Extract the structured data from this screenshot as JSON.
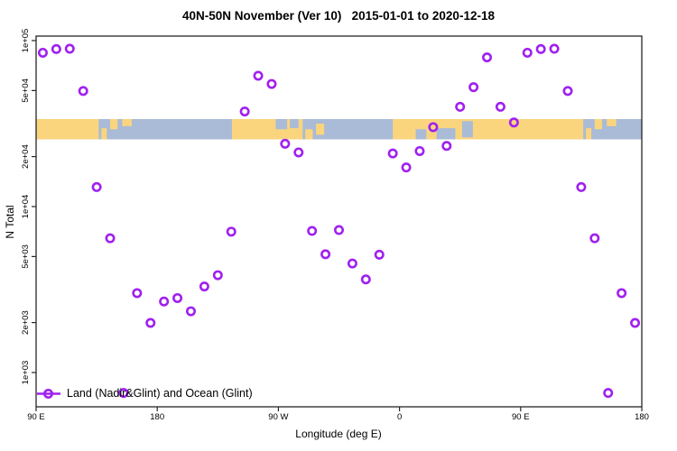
{
  "title": "40N-50N November (Ver 10)   2015-01-01 to 2020-12-18",
  "chart_data": {
    "type": "scatter",
    "title": "40N-50N November (Ver 10)   2015-01-01 to 2020-12-18",
    "xlabel": "Longitude (deg E)",
    "ylabel": "N Total",
    "y_scale": "log10",
    "ylim": [
      620,
      106000
    ],
    "x_span_deg": [
      90,
      540
    ],
    "grid": "off",
    "x_ticks": [
      {
        "deg": 90,
        "label": "90 E"
      },
      {
        "deg": 180,
        "label": "180"
      },
      {
        "deg": 270,
        "label": "90 W"
      },
      {
        "deg": 360,
        "label": "0"
      },
      {
        "deg": 450,
        "label": "90 E"
      },
      {
        "deg": 540,
        "label": "180"
      }
    ],
    "y_ticks": [
      {
        "value": 100000,
        "label": "1e+05"
      },
      {
        "value": 50000,
        "label": "5e+04"
      },
      {
        "value": 20000,
        "label": "2e+04"
      },
      {
        "value": 10000,
        "label": "1e+04"
      },
      {
        "value": 5000,
        "label": "5e+03"
      },
      {
        "value": 2000,
        "label": "2e+03"
      },
      {
        "value": 1000,
        "label": "1e+03"
      }
    ],
    "legend": {
      "label": "Land (Nadir&Glint) and Ocean (Glint)",
      "marker": "open-circle-on-line",
      "position": "bottom-left"
    },
    "marker": {
      "shape": "open-circle",
      "color": "#A020F0",
      "radius_px": 4.2,
      "stroke_px": 2.6
    },
    "points": [
      {
        "lon": "95E",
        "deg": 95,
        "value": 84500
      },
      {
        "lon": "105E",
        "deg": 105,
        "value": 88900
      },
      {
        "lon": "115E",
        "deg": 115,
        "value": 89300
      },
      {
        "lon": "125E",
        "deg": 125,
        "value": 49700
      },
      {
        "lon": "135E",
        "deg": 135,
        "value": 13100
      },
      {
        "lon": "145E",
        "deg": 145,
        "value": 6440
      },
      {
        "lon": "155E",
        "deg": 155,
        "value": 753
      },
      {
        "lon": "165E",
        "deg": 165,
        "value": 3010
      },
      {
        "lon": "175E",
        "deg": 175,
        "value": 1990
      },
      {
        "lon": "175W",
        "deg": 185,
        "value": 2680
      },
      {
        "lon": "165W",
        "deg": 195,
        "value": 2810
      },
      {
        "lon": "155W",
        "deg": 205,
        "value": 2340
      },
      {
        "lon": "145W",
        "deg": 215,
        "value": 3300
      },
      {
        "lon": "135W",
        "deg": 225,
        "value": 3860
      },
      {
        "lon": "125W",
        "deg": 235,
        "value": 7060
      },
      {
        "lon": "115W",
        "deg": 245,
        "value": 37400
      },
      {
        "lon": "105W",
        "deg": 255,
        "value": 61400
      },
      {
        "lon": "95W",
        "deg": 265,
        "value": 54800
      },
      {
        "lon": "85W",
        "deg": 275,
        "value": 23900
      },
      {
        "lon": "75W",
        "deg": 285,
        "value": 21200
      },
      {
        "lon": "65W",
        "deg": 295,
        "value": 7130
      },
      {
        "lon": "55W",
        "deg": 305,
        "value": 5160
      },
      {
        "lon": "45W",
        "deg": 315,
        "value": 7220
      },
      {
        "lon": "35W",
        "deg": 325,
        "value": 4540
      },
      {
        "lon": "25W",
        "deg": 335,
        "value": 3640
      },
      {
        "lon": "15W",
        "deg": 345,
        "value": 5130
      },
      {
        "lon": "5W",
        "deg": 355,
        "value": 20900
      },
      {
        "lon": "5E",
        "deg": 365,
        "value": 17200
      },
      {
        "lon": "15E",
        "deg": 375,
        "value": 21600
      },
      {
        "lon": "25E",
        "deg": 385,
        "value": 30100
      },
      {
        "lon": "35E",
        "deg": 395,
        "value": 23200
      },
      {
        "lon": "45E",
        "deg": 405,
        "value": 39900
      },
      {
        "lon": "55E",
        "deg": 415,
        "value": 52400
      },
      {
        "lon": "65E",
        "deg": 425,
        "value": 79200
      },
      {
        "lon": "75E",
        "deg": 435,
        "value": 39900
      },
      {
        "lon": "85E",
        "deg": 445,
        "value": 32100
      }
    ],
    "wrap_repeat_degs": [
      455,
      465,
      475,
      485,
      495,
      505,
      515,
      525,
      535
    ],
    "map_band": {
      "description": "40N-50N latitude land/ocean strip drawn across the plot",
      "ocean_color": "#A9BBD6",
      "land_color": "#FAD57E",
      "value_top": 33600,
      "value_bottom": 25400,
      "land_segments": [
        {
          "f": 90,
          "t": 136.5
        },
        {
          "f": 138.5,
          "t": 142.5,
          "h": 0.55,
          "a": "bottom"
        },
        {
          "f": 145,
          "t": 150.5,
          "h": 0.5,
          "a": "top"
        },
        {
          "f": 154,
          "t": 161,
          "h": 0.35,
          "a": "top"
        },
        {
          "f": 235.5,
          "t": 288
        },
        {
          "f": 290,
          "t": 295.5,
          "h": 0.5,
          "a": "bottom"
        },
        {
          "f": 298,
          "t": 304,
          "h": 0.55,
          "a": "mid"
        },
        {
          "f": 355,
          "t": 496.5
        },
        {
          "f": 498.5,
          "t": 502.5,
          "h": 0.55,
          "a": "bottom"
        },
        {
          "f": 505,
          "t": 510.5,
          "h": 0.5,
          "a": "top"
        },
        {
          "f": 514,
          "t": 521,
          "h": 0.35,
          "a": "top"
        }
      ],
      "water_patches": [
        {
          "f": 268,
          "t": 276.5,
          "h": 0.5,
          "a": "top"
        },
        {
          "f": 278.5,
          "t": 285,
          "h": 0.45,
          "a": "top"
        },
        {
          "f": 372,
          "t": 380,
          "h": 0.5,
          "a": "bottom"
        },
        {
          "f": 387.5,
          "t": 401.5,
          "h": 0.55,
          "a": "bottom"
        },
        {
          "f": 406.5,
          "t": 414.5,
          "h": 0.8,
          "a": "mid"
        }
      ]
    }
  }
}
